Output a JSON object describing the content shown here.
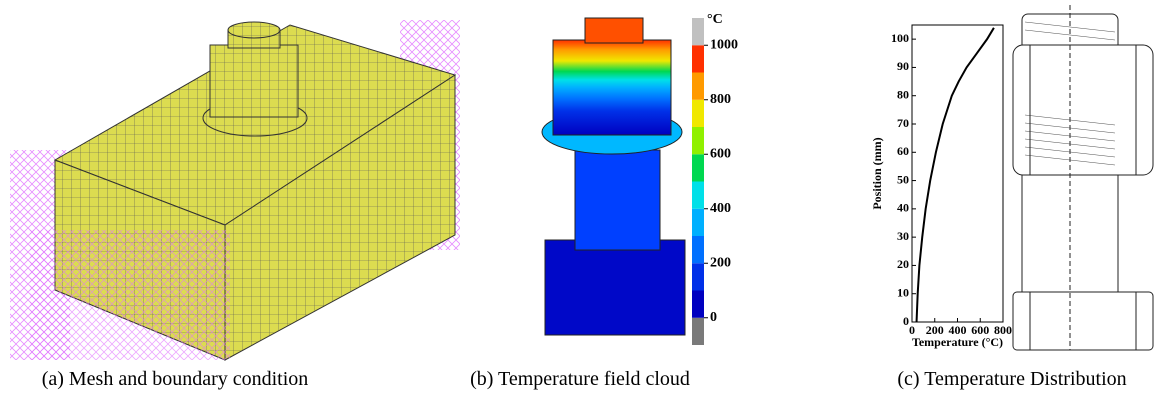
{
  "panels": [
    {
      "caption": "(a) Mesh and boundary condition"
    },
    {
      "caption": "(b) Temperature field cloud",
      "colorbar": {
        "unit": "°C",
        "lim": [
          -100,
          1100
        ],
        "ticks": [
          0,
          200,
          400,
          600,
          800,
          1000
        ],
        "colors": [
          "#7a7a7a",
          "#0000c0",
          "#0030e8",
          "#0070ff",
          "#00b0ff",
          "#00e0e8",
          "#00d850",
          "#90f000",
          "#f0e800",
          "#ff9a00",
          "#ff3000",
          "#c0c0c0"
        ]
      }
    },
    {
      "caption": "(c) Temperature Distribution"
    }
  ],
  "chart_data": {
    "type": "line",
    "xlabel": "Temperature (°C)",
    "ylabel": "Position (mm)",
    "xlim": [
      0,
      800
    ],
    "xticks": [
      0,
      200,
      400,
      600,
      800
    ],
    "ylim": [
      0,
      105
    ],
    "yticks": [
      0,
      10,
      20,
      30,
      40,
      50,
      60,
      70,
      80,
      90,
      100
    ],
    "series": [
      {
        "color": "#000000",
        "x": [
          40,
          50,
          65,
          90,
          120,
          160,
          210,
          270,
          350,
          410,
          480,
          570,
          660,
          720
        ],
        "y": [
          0,
          10,
          20,
          30,
          40,
          50,
          60,
          70,
          80,
          85,
          90,
          95,
          100,
          104
        ]
      }
    ]
  }
}
